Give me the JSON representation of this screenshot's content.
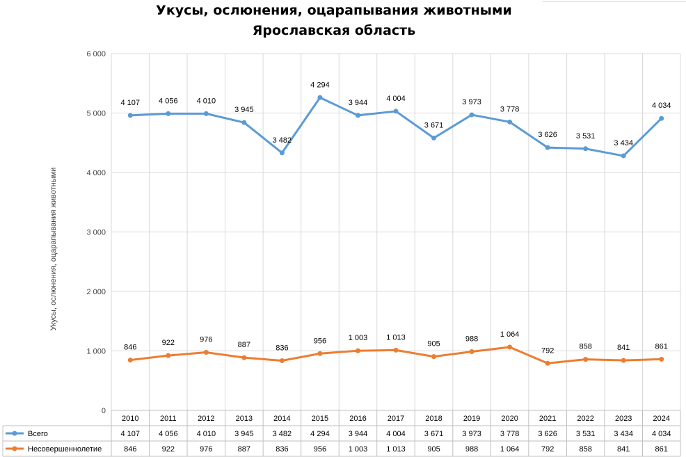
{
  "chart_data": {
    "type": "line",
    "title": "Укусы, ослюнения, оцарапывания животными",
    "subtitle": "Ярославская область",
    "ylabel": "Укусы, ослюнения, оцарапывания животными",
    "xlabel": "",
    "categories": [
      "2010",
      "2011",
      "2012",
      "2013",
      "2014",
      "2015",
      "2016",
      "2017",
      "2018",
      "2019",
      "2020",
      "2021",
      "2022",
      "2023",
      "2024"
    ],
    "yticks": [
      0,
      1000,
      2000,
      3000,
      4000,
      5000,
      6000
    ],
    "ytick_labels": [
      "0",
      "1 000",
      "2 000",
      "3 000",
      "4 000",
      "5 000",
      "6 000"
    ],
    "ylim": [
      0,
      6000
    ],
    "grid": true,
    "legend": "data-table",
    "series": [
      {
        "name": "Всего",
        "color": "#5b9bd5",
        "plot_values": [
          4960,
          4990,
          4990,
          4840,
          4330,
          5260,
          4960,
          5030,
          4580,
          4970,
          4850,
          4420,
          4400,
          4280,
          4910
        ],
        "labels": [
          "4 107",
          "4 056",
          "4 010",
          "3 945",
          "3 482",
          "4 294",
          "3 944",
          "4 004",
          "3 671",
          "3 973",
          "3 778",
          "3 626",
          "3 531",
          "3 434",
          "4 034"
        ]
      },
      {
        "name": "Несовершеннолетие",
        "color": "#ed7d31",
        "plot_values": [
          846,
          922,
          976,
          887,
          836,
          956,
          1003,
          1013,
          905,
          988,
          1064,
          792,
          858,
          841,
          861
        ],
        "labels": [
          "846",
          "922",
          "976",
          "887",
          "836",
          "956",
          "1 003",
          "1 013",
          "905",
          "988",
          "1 064",
          "792",
          "858",
          "841",
          "861"
        ]
      }
    ]
  }
}
